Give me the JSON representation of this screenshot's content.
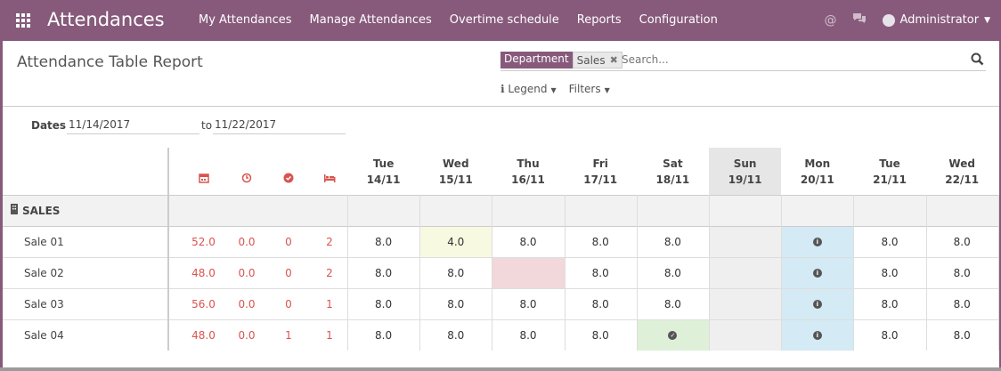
{
  "app": {
    "title": "Attendances",
    "menu": [
      "My Attendances",
      "Manage Attendances",
      "Overtime schedule",
      "Reports",
      "Configuration"
    ],
    "user": "Administrator"
  },
  "control_panel": {
    "title": "Attendance Table Report",
    "facet_label": "Department",
    "facet_value": "Sales",
    "search_placeholder": "Search...",
    "legend_label": "Legend",
    "filters_label": "Filters"
  },
  "dates": {
    "label": "Dates",
    "from": "11/14/2017",
    "to_label": "to",
    "to": "11/22/2017"
  },
  "columns": [
    {
      "day": "Tue",
      "date": "14/11"
    },
    {
      "day": "Wed",
      "date": "15/11"
    },
    {
      "day": "Thu",
      "date": "16/11"
    },
    {
      "day": "Fri",
      "date": "17/11"
    },
    {
      "day": "Sat",
      "date": "18/11"
    },
    {
      "day": "Sun",
      "date": "19/11"
    },
    {
      "day": "Mon",
      "date": "20/11"
    },
    {
      "day": "Tue",
      "date": "21/11"
    },
    {
      "day": "Wed",
      "date": "22/11"
    }
  ],
  "summary_icons": [
    "calendar-icon",
    "clock-icon",
    "check-circle-icon",
    "bed-icon"
  ],
  "department": "SALES",
  "rows": [
    {
      "name": "Sale 01",
      "summary": [
        "52.0",
        "0.0",
        "0",
        "2"
      ],
      "days": [
        "8.0",
        "4.0",
        "8.0",
        "8.0",
        "8.0",
        "",
        "info",
        "8.0",
        "8.0"
      ]
    },
    {
      "name": "Sale 02",
      "summary": [
        "48.0",
        "0.0",
        "0",
        "2"
      ],
      "days": [
        "8.0",
        "8.0",
        "",
        "8.0",
        "8.0",
        "",
        "info",
        "8.0",
        "8.0"
      ]
    },
    {
      "name": "Sale 03",
      "summary": [
        "56.0",
        "0.0",
        "0",
        "1"
      ],
      "days": [
        "8.0",
        "8.0",
        "8.0",
        "8.0",
        "8.0",
        "",
        "info",
        "8.0",
        "8.0"
      ]
    },
    {
      "name": "Sale 04",
      "summary": [
        "48.0",
        "0.0",
        "1",
        "1"
      ],
      "days": [
        "8.0",
        "8.0",
        "8.0",
        "8.0",
        "check",
        "",
        "info",
        "8.0",
        "8.0"
      ]
    }
  ],
  "colors": {
    "brand": "#875a7b",
    "summary_red": "#d9534f",
    "half_day": "#f8f9e1",
    "absence": "#f2d7db",
    "holiday": "#dff0d8",
    "weekend": "#efefef",
    "leave_info": "#d4eaf4"
  }
}
